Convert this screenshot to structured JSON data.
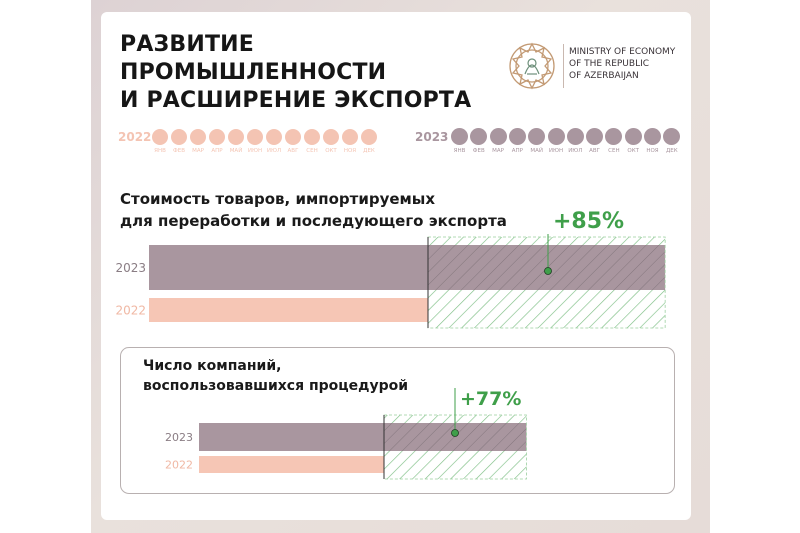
{
  "header": {
    "title_lines": [
      "РАЗВИТИЕ",
      "ПРОМЫШЛЕННОСТИ",
      "И РАСШИРЕНИЕ ЭКСПОРТА"
    ],
    "ministry_lines": [
      "MINISTRY OF ECONOMY",
      "OF THE REPUBLIC",
      "OF AZERBAIJAN"
    ]
  },
  "timeline": {
    "year_2022": "2022",
    "year_2023": "2023",
    "months": [
      "ЯНВ",
      "ФЕВ",
      "МАР",
      "АПР",
      "МАЙ",
      "ИЮН",
      "ИЮЛ",
      "АВГ",
      "СЕН",
      "ОКТ",
      "НОЯ",
      "ДЕК"
    ],
    "color_2022": "#f4c4b3",
    "color_2023": "#a9969f"
  },
  "chart_data": [
    {
      "type": "bar",
      "orientation": "horizontal",
      "title_lines": [
        "Стоимость товаров, импортируемых",
        "для переработки и последующего экспорта"
      ],
      "categories": [
        "2023",
        "2022"
      ],
      "values": [
        185,
        100
      ],
      "growth_label": "+85%",
      "colors": {
        "2023": "#a9969f",
        "2022": "#f6c6b5",
        "growth": "#3f9f4a"
      }
    },
    {
      "type": "bar",
      "orientation": "horizontal",
      "title_lines": [
        "Число компаний,",
        "воспользовавшихся процедурой"
      ],
      "categories": [
        "2023",
        "2022"
      ],
      "values": [
        177,
        100
      ],
      "growth_label": "+77%",
      "colors": {
        "2023": "#a9969f",
        "2022": "#f6c6b5",
        "growth": "#3f9f4a"
      }
    }
  ]
}
